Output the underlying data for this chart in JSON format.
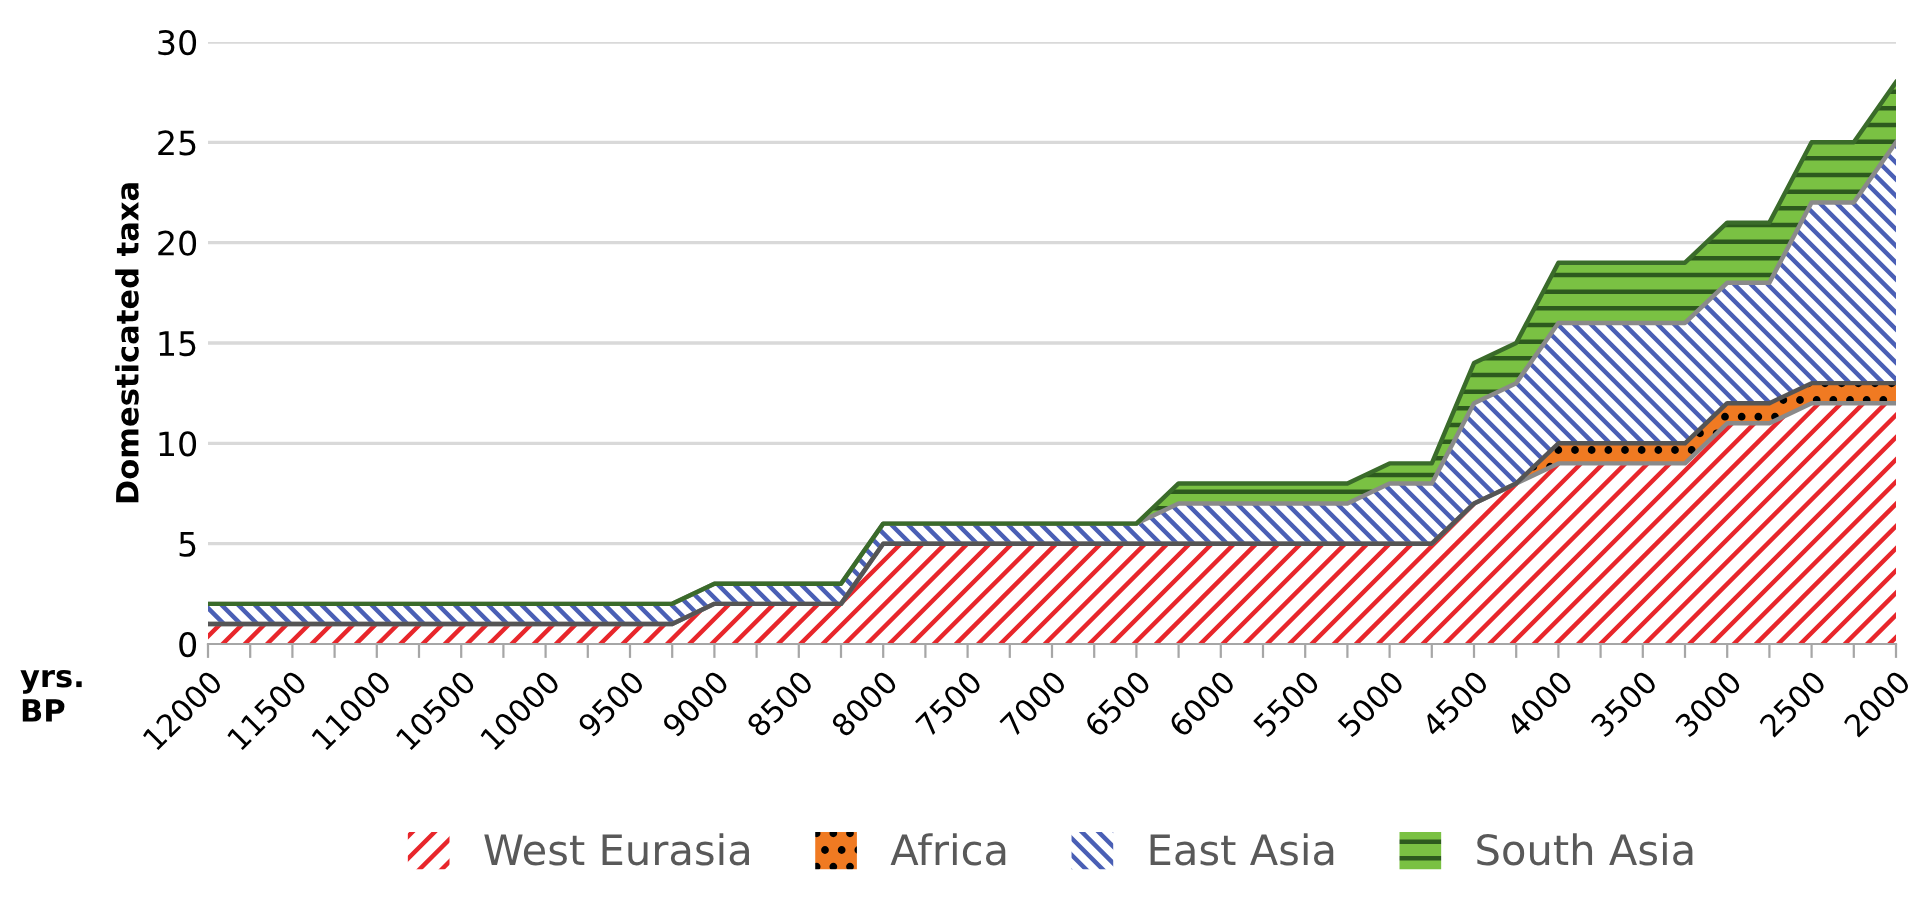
{
  "chart_data": {
    "type": "area",
    "stacked": true,
    "ylabel": "Domesticated taxa",
    "xlabel": "yrs.\nBP",
    "categories": [
      "12000",
      null,
      "11500",
      null,
      "11000",
      null,
      "10500",
      null,
      "10000",
      null,
      "9500",
      null,
      "9000",
      null,
      "8500",
      null,
      "8000",
      null,
      "7500",
      null,
      "7000",
      null,
      "6500",
      null,
      "6000",
      null,
      "5500",
      null,
      "5000",
      null,
      "4500",
      null,
      "4000",
      null,
      "3500",
      null,
      "3000",
      null,
      "2500",
      null,
      "2000"
    ],
    "series": [
      {
        "name": "West Eurasia",
        "color": "#e8262b",
        "values": [
          1,
          1,
          1,
          1,
          1,
          1,
          1,
          1,
          1,
          1,
          1,
          1,
          2,
          2,
          2,
          2,
          5,
          5,
          5,
          5,
          5,
          5,
          5,
          5,
          5,
          5,
          5,
          5,
          5,
          5,
          7,
          8,
          9,
          9,
          9,
          9,
          11,
          11,
          12,
          12,
          12
        ]
      },
      {
        "name": "Africa",
        "color": "#f07a22",
        "values": [
          0,
          0,
          0,
          0,
          0,
          0,
          0,
          0,
          0,
          0,
          0,
          0,
          0,
          0,
          0,
          0,
          0,
          0,
          0,
          0,
          0,
          0,
          0,
          0,
          0,
          0,
          0,
          0,
          0,
          0,
          0,
          0,
          1,
          1,
          1,
          1,
          1,
          1,
          1,
          1,
          1
        ]
      },
      {
        "name": "East Asia",
        "color": "#4a5fb5",
        "values": [
          1,
          1,
          1,
          1,
          1,
          1,
          1,
          1,
          1,
          1,
          1,
          1,
          1,
          1,
          1,
          1,
          1,
          1,
          1,
          1,
          1,
          1,
          1,
          2,
          2,
          2,
          2,
          2,
          3,
          3,
          5,
          5,
          6,
          6,
          6,
          6,
          6,
          6,
          9,
          9,
          12
        ]
      },
      {
        "name": "South Asia",
        "color": "#7ac143",
        "values": [
          0,
          0,
          0,
          0,
          0,
          0,
          0,
          0,
          0,
          0,
          0,
          0,
          0,
          0,
          0,
          0,
          0,
          0,
          0,
          0,
          0,
          0,
          0,
          1,
          1,
          1,
          1,
          1,
          1,
          1,
          2,
          2,
          3,
          3,
          3,
          3,
          3,
          3,
          3,
          3,
          3
        ]
      }
    ],
    "ylim": [
      0,
      30
    ],
    "yticks": [
      0,
      5,
      10,
      15,
      20,
      25,
      30
    ],
    "grid": "y",
    "legend": "bottom"
  }
}
